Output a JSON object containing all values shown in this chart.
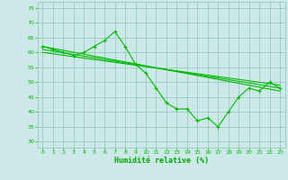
{
  "background_color": "#cce8e8",
  "grid_color": "#99ccbb",
  "line_color": "#00bb00",
  "xlabel": "Humidité relative (%)",
  "xlabel_color": "#00aa00",
  "ylim": [
    28,
    77
  ],
  "xlim": [
    -0.5,
    23.5
  ],
  "yticks": [
    30,
    35,
    40,
    45,
    50,
    55,
    60,
    65,
    70,
    75
  ],
  "xticks": [
    0,
    1,
    2,
    3,
    4,
    5,
    6,
    7,
    8,
    9,
    10,
    11,
    12,
    13,
    14,
    15,
    16,
    17,
    18,
    19,
    20,
    21,
    22,
    23
  ],
  "series1_x": [
    0,
    1,
    2,
    3,
    4,
    5,
    6,
    7,
    8,
    9,
    10,
    11,
    12,
    13,
    14,
    15,
    16,
    17,
    18,
    19,
    20,
    21,
    22,
    23
  ],
  "series1_y": [
    62,
    61,
    60,
    59,
    60,
    62,
    64,
    67,
    62,
    56,
    53,
    48,
    43,
    41,
    41,
    37,
    38,
    35,
    40,
    45,
    48,
    47,
    50,
    48
  ],
  "series2_x": [
    0,
    23
  ],
  "series2_y": [
    62,
    47
  ],
  "series3_x": [
    0,
    23
  ],
  "series3_y": [
    61,
    48
  ],
  "series4_x": [
    0,
    23
  ],
  "series4_y": [
    60,
    49
  ]
}
